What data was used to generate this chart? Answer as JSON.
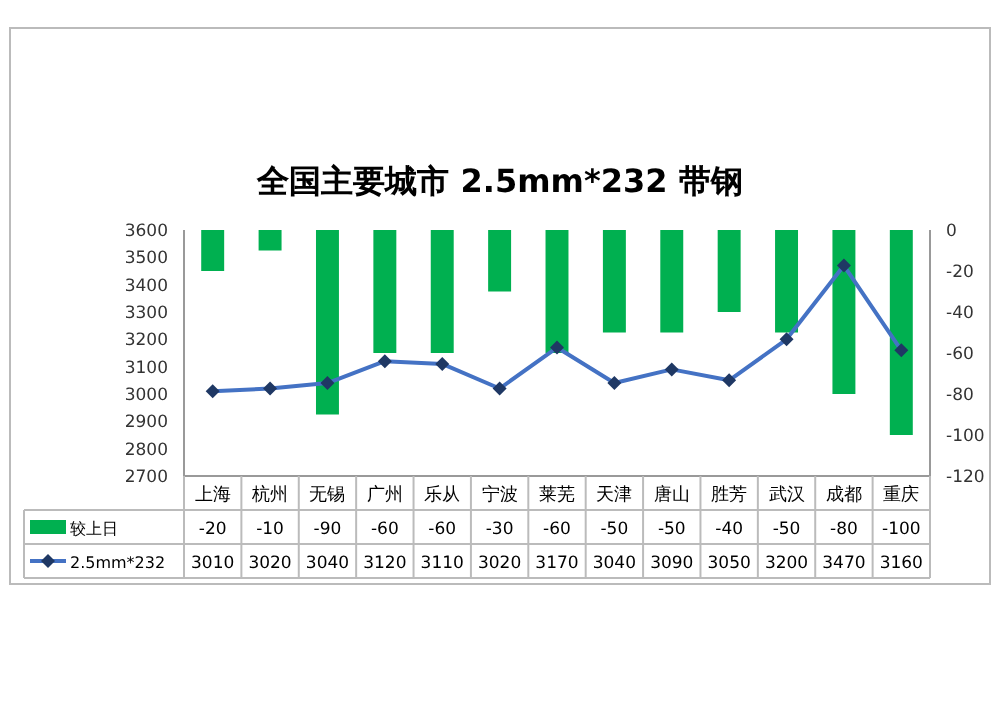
{
  "chart_data": {
    "type": "bar",
    "title": "全国主要城市 2.5mm*232 带钢",
    "categories": [
      "上海",
      "杭州",
      "无锡",
      "广州",
      "乐从",
      "宁波",
      "莱芜",
      "天津",
      "唐山",
      "胜芳",
      "武汉",
      "成都",
      "重庆"
    ],
    "series": [
      {
        "name": "较上日",
        "axis": "y2",
        "color": "#00b050",
        "values": [
          -20,
          -10,
          -90,
          -60,
          -60,
          -30,
          -60,
          -50,
          -50,
          -40,
          -50,
          -80,
          -100
        ]
      },
      {
        "name": "2.5mm*232",
        "type": "line",
        "axis": "y",
        "color": "#4472c4",
        "values": [
          3010,
          3020,
          3040,
          3120,
          3110,
          3020,
          3170,
          3040,
          3090,
          3050,
          3200,
          3470,
          3160
        ]
      }
    ],
    "ylim": [
      2700,
      3600
    ],
    "yticks": [
      2700,
      2800,
      2900,
      3000,
      3100,
      3200,
      3300,
      3400,
      3500,
      3600
    ],
    "y2lim": [
      -120,
      0
    ],
    "y2ticks": [
      -120,
      -100,
      -80,
      -60,
      -40,
      -20,
      0
    ],
    "marker": "diamond",
    "grid": false,
    "legend": "bottom",
    "data_labels": true
  }
}
